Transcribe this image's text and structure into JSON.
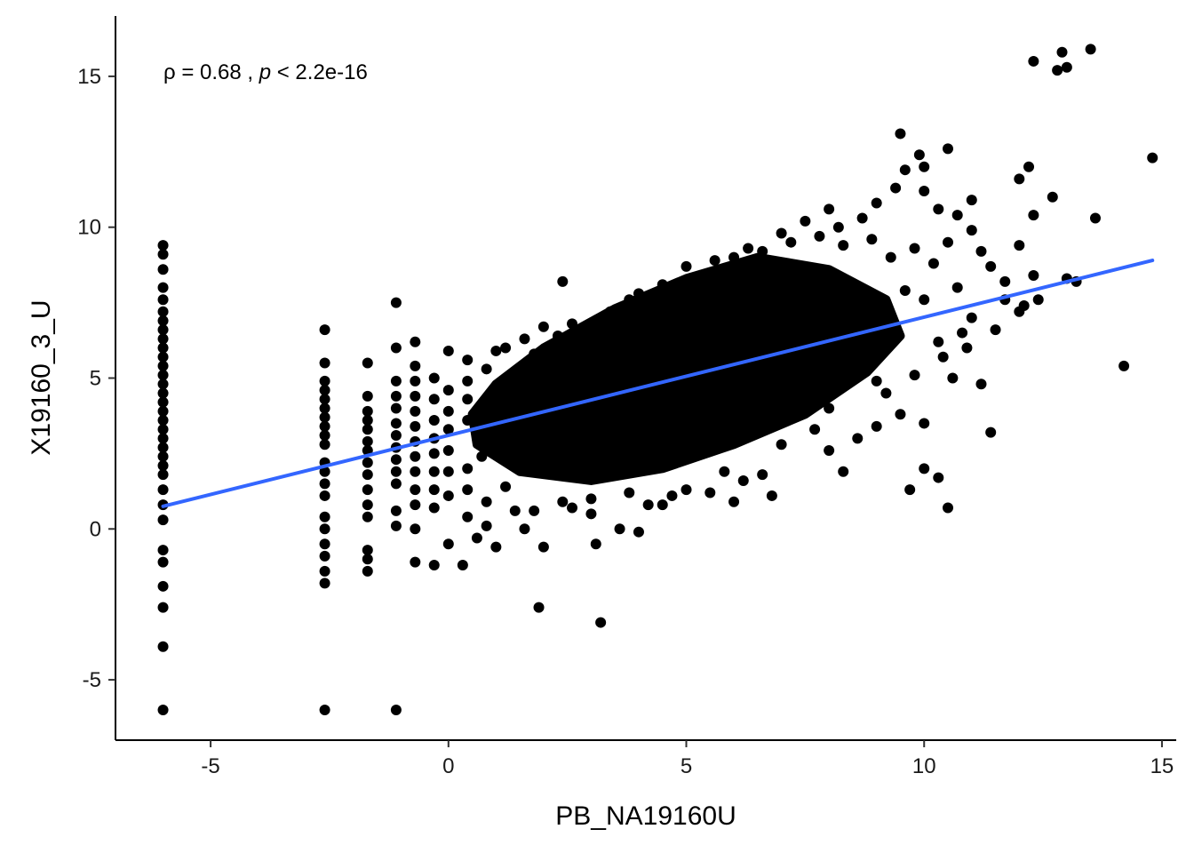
{
  "chart_data": {
    "type": "scatter",
    "title": "",
    "xlabel": "PB_NA19160U",
    "ylabel": "X19160_3_U",
    "xlim": [
      -7.0,
      15.3
    ],
    "ylim": [
      -7.0,
      17.0
    ],
    "x_ticks": [
      -5,
      0,
      5,
      10,
      15
    ],
    "y_ticks": [
      -5,
      0,
      5,
      10,
      15
    ],
    "x_tick_labels": [
      "-5",
      "0",
      "5",
      "10",
      "15"
    ],
    "y_tick_labels": [
      "-5",
      "0",
      "5",
      "10",
      "15"
    ],
    "grid": false,
    "legend": "none",
    "annotation": {
      "prefix": "ρ = 0.68 , ",
      "p_symbol": "p",
      "suffix": " < 2.2e-16"
    },
    "regression_line": {
      "color": "#3366ff",
      "x": [
        -6.0,
        14.8
      ],
      "y": [
        0.75,
        8.9
      ]
    },
    "point_color": "#000000",
    "core_cloud": {
      "center": [
        5.0,
        5.0
      ],
      "note_shape": "dense elliptical cloud of points along the regression trend",
      "polygon": [
        [
          0.6,
          2.8
        ],
        [
          1.5,
          1.9
        ],
        [
          3.0,
          1.6
        ],
        [
          4.5,
          2.0
        ],
        [
          6.0,
          2.8
        ],
        [
          7.5,
          3.8
        ],
        [
          8.8,
          5.2
        ],
        [
          9.5,
          6.4
        ],
        [
          9.2,
          7.6
        ],
        [
          8.0,
          8.6
        ],
        [
          6.5,
          9.0
        ],
        [
          5.0,
          8.3
        ],
        [
          3.5,
          7.3
        ],
        [
          2.0,
          6.0
        ],
        [
          1.0,
          4.8
        ],
        [
          0.5,
          3.8
        ]
      ]
    },
    "points": [
      {
        "x": -6.0,
        "y": 9.4
      },
      {
        "x": -6.0,
        "y": 9.1
      },
      {
        "x": -6.0,
        "y": 8.6
      },
      {
        "x": -6.0,
        "y": 8.0
      },
      {
        "x": -6.0,
        "y": 7.6
      },
      {
        "x": -6.0,
        "y": 7.2
      },
      {
        "x": -6.0,
        "y": 6.9
      },
      {
        "x": -6.0,
        "y": 6.6
      },
      {
        "x": -6.0,
        "y": 6.3
      },
      {
        "x": -6.0,
        "y": 6.0
      },
      {
        "x": -6.0,
        "y": 5.7
      },
      {
        "x": -6.0,
        "y": 5.4
      },
      {
        "x": -6.0,
        "y": 5.1
      },
      {
        "x": -6.0,
        "y": 4.8
      },
      {
        "x": -6.0,
        "y": 4.5
      },
      {
        "x": -6.0,
        "y": 4.2
      },
      {
        "x": -6.0,
        "y": 3.9
      },
      {
        "x": -6.0,
        "y": 3.6
      },
      {
        "x": -6.0,
        "y": 3.3
      },
      {
        "x": -6.0,
        "y": 3.0
      },
      {
        "x": -6.0,
        "y": 2.7
      },
      {
        "x": -6.0,
        "y": 2.4
      },
      {
        "x": -6.0,
        "y": 2.1
      },
      {
        "x": -6.0,
        "y": 1.8
      },
      {
        "x": -6.0,
        "y": 1.3
      },
      {
        "x": -6.0,
        "y": 0.8
      },
      {
        "x": -6.0,
        "y": 0.3
      },
      {
        "x": -6.0,
        "y": -0.7
      },
      {
        "x": -6.0,
        "y": -1.1
      },
      {
        "x": -6.0,
        "y": -1.9
      },
      {
        "x": -6.0,
        "y": -2.6
      },
      {
        "x": -6.0,
        "y": -3.9
      },
      {
        "x": -6.0,
        "y": -6.0
      },
      {
        "x": -2.6,
        "y": 6.6
      },
      {
        "x": -2.6,
        "y": 5.5
      },
      {
        "x": -2.6,
        "y": 4.9
      },
      {
        "x": -2.6,
        "y": 4.6
      },
      {
        "x": -2.6,
        "y": 4.3
      },
      {
        "x": -2.6,
        "y": 4.0
      },
      {
        "x": -2.6,
        "y": 3.7
      },
      {
        "x": -2.6,
        "y": 3.4
      },
      {
        "x": -2.6,
        "y": 3.1
      },
      {
        "x": -2.6,
        "y": 2.8
      },
      {
        "x": -2.6,
        "y": 2.2
      },
      {
        "x": -2.6,
        "y": 1.9
      },
      {
        "x": -2.6,
        "y": 1.5
      },
      {
        "x": -2.6,
        "y": 1.1
      },
      {
        "x": -2.6,
        "y": 0.4
      },
      {
        "x": -2.6,
        "y": 0.0
      },
      {
        "x": -2.6,
        "y": -0.5
      },
      {
        "x": -2.6,
        "y": -0.9
      },
      {
        "x": -2.6,
        "y": -1.4
      },
      {
        "x": -2.6,
        "y": -1.8
      },
      {
        "x": -2.6,
        "y": -6.0
      },
      {
        "x": -1.7,
        "y": 5.5
      },
      {
        "x": -1.7,
        "y": 4.4
      },
      {
        "x": -1.7,
        "y": 3.9
      },
      {
        "x": -1.7,
        "y": 3.6
      },
      {
        "x": -1.7,
        "y": 3.3
      },
      {
        "x": -1.7,
        "y": 2.9
      },
      {
        "x": -1.7,
        "y": 2.6
      },
      {
        "x": -1.7,
        "y": 2.2
      },
      {
        "x": -1.7,
        "y": 1.8
      },
      {
        "x": -1.7,
        "y": 1.3
      },
      {
        "x": -1.7,
        "y": 0.8
      },
      {
        "x": -1.7,
        "y": 0.4
      },
      {
        "x": -1.7,
        "y": -0.7
      },
      {
        "x": -1.7,
        "y": -1.0
      },
      {
        "x": -1.7,
        "y": -1.4
      },
      {
        "x": -1.1,
        "y": 7.5
      },
      {
        "x": -1.1,
        "y": 6.0
      },
      {
        "x": -1.1,
        "y": 4.9
      },
      {
        "x": -1.1,
        "y": 4.4
      },
      {
        "x": -1.1,
        "y": 4.0
      },
      {
        "x": -1.1,
        "y": 3.5
      },
      {
        "x": -1.1,
        "y": 3.1
      },
      {
        "x": -1.1,
        "y": 2.7
      },
      {
        "x": -1.1,
        "y": 2.3
      },
      {
        "x": -1.1,
        "y": 1.9
      },
      {
        "x": -1.1,
        "y": 1.5
      },
      {
        "x": -1.1,
        "y": 0.6
      },
      {
        "x": -1.1,
        "y": 0.1
      },
      {
        "x": -1.1,
        "y": -6.0
      },
      {
        "x": -0.7,
        "y": 6.2
      },
      {
        "x": -0.7,
        "y": 5.4
      },
      {
        "x": -0.7,
        "y": 4.9
      },
      {
        "x": -0.7,
        "y": 4.4
      },
      {
        "x": -0.7,
        "y": 3.9
      },
      {
        "x": -0.7,
        "y": 3.4
      },
      {
        "x": -0.7,
        "y": 2.9
      },
      {
        "x": -0.7,
        "y": 2.4
      },
      {
        "x": -0.7,
        "y": 1.9
      },
      {
        "x": -0.7,
        "y": 1.3
      },
      {
        "x": -0.7,
        "y": 0.8
      },
      {
        "x": -0.7,
        "y": 0.0
      },
      {
        "x": -0.7,
        "y": -1.1
      },
      {
        "x": -0.3,
        "y": 4.3
      },
      {
        "x": -0.3,
        "y": 3.6
      },
      {
        "x": -0.3,
        "y": 3.0
      },
      {
        "x": -0.3,
        "y": 2.5
      },
      {
        "x": -0.3,
        "y": 1.9
      },
      {
        "x": -0.3,
        "y": 1.3
      },
      {
        "x": -0.3,
        "y": 0.7
      },
      {
        "x": -0.3,
        "y": -1.2
      },
      {
        "x": -0.3,
        "y": 5.0
      },
      {
        "x": 0.0,
        "y": 5.9
      },
      {
        "x": 0.0,
        "y": 4.6
      },
      {
        "x": 0.0,
        "y": 3.9
      },
      {
        "x": 0.0,
        "y": 3.3
      },
      {
        "x": 0.0,
        "y": 2.6
      },
      {
        "x": 0.0,
        "y": 1.9
      },
      {
        "x": 0.0,
        "y": 1.1
      },
      {
        "x": 0.0,
        "y": -0.5
      },
      {
        "x": 0.3,
        "y": -1.2
      },
      {
        "x": 0.4,
        "y": 5.6
      },
      {
        "x": 0.4,
        "y": 4.9
      },
      {
        "x": 0.4,
        "y": 4.3
      },
      {
        "x": 0.4,
        "y": 3.6
      },
      {
        "x": 0.4,
        "y": 2.0
      },
      {
        "x": 0.4,
        "y": 1.3
      },
      {
        "x": 0.4,
        "y": 0.4
      },
      {
        "x": 0.6,
        "y": -0.3
      },
      {
        "x": 0.7,
        "y": 2.4
      },
      {
        "x": 0.8,
        "y": 5.3
      },
      {
        "x": 0.8,
        "y": 0.9
      },
      {
        "x": 0.8,
        "y": 0.1
      },
      {
        "x": 1.0,
        "y": -0.6
      },
      {
        "x": 1.0,
        "y": 5.9
      },
      {
        "x": 1.2,
        "y": 1.4
      },
      {
        "x": 1.4,
        "y": 0.6
      },
      {
        "x": 1.4,
        "y": 5.2
      },
      {
        "x": 1.6,
        "y": 0.0
      },
      {
        "x": 1.8,
        "y": 5.8
      },
      {
        "x": 1.8,
        "y": 0.6
      },
      {
        "x": 2.0,
        "y": -0.6
      },
      {
        "x": 1.9,
        "y": -2.6
      },
      {
        "x": 2.3,
        "y": 6.4
      },
      {
        "x": 2.4,
        "y": 0.9
      },
      {
        "x": 2.8,
        "y": 6.3
      },
      {
        "x": 3.0,
        "y": 1.0
      },
      {
        "x": 3.1,
        "y": -0.5
      },
      {
        "x": 3.2,
        "y": -3.1
      },
      {
        "x": 3.4,
        "y": 7.2
      },
      {
        "x": 3.6,
        "y": 0.0
      },
      {
        "x": 4.0,
        "y": -0.1
      },
      {
        "x": 4.2,
        "y": 7.5
      },
      {
        "x": 4.5,
        "y": 0.8
      },
      {
        "x": 2.4,
        "y": 8.2
      },
      {
        "x": 2.0,
        "y": 6.7
      },
      {
        "x": 4.0,
        "y": 7.8
      },
      {
        "x": 5.0,
        "y": 8.7
      },
      {
        "x": 5.4,
        "y": 8.4
      },
      {
        "x": 6.0,
        "y": 9.0
      },
      {
        "x": 6.6,
        "y": 9.2
      },
      {
        "x": 7.2,
        "y": 9.5
      },
      {
        "x": 7.8,
        "y": 9.7
      },
      {
        "x": 8.2,
        "y": 10.0
      },
      {
        "x": 8.7,
        "y": 10.3
      },
      {
        "x": 8.0,
        "y": 10.6
      },
      {
        "x": 9.0,
        "y": 10.8
      },
      {
        "x": 9.4,
        "y": 11.3
      },
      {
        "x": 9.6,
        "y": 11.9
      },
      {
        "x": 9.5,
        "y": 13.1
      },
      {
        "x": 9.9,
        "y": 12.4
      },
      {
        "x": 10.0,
        "y": 12.0
      },
      {
        "x": 10.5,
        "y": 12.6
      },
      {
        "x": 10.0,
        "y": 11.2
      },
      {
        "x": 10.3,
        "y": 10.6
      },
      {
        "x": 10.7,
        "y": 10.4
      },
      {
        "x": 11.0,
        "y": 10.9
      },
      {
        "x": 11.0,
        "y": 9.9
      },
      {
        "x": 10.5,
        "y": 9.5
      },
      {
        "x": 11.2,
        "y": 9.2
      },
      {
        "x": 11.4,
        "y": 8.7
      },
      {
        "x": 11.7,
        "y": 8.2
      },
      {
        "x": 12.0,
        "y": 9.4
      },
      {
        "x": 12.3,
        "y": 10.4
      },
      {
        "x": 12.0,
        "y": 11.6
      },
      {
        "x": 12.2,
        "y": 12.0
      },
      {
        "x": 12.7,
        "y": 11.0
      },
      {
        "x": 12.3,
        "y": 8.4
      },
      {
        "x": 12.1,
        "y": 7.4
      },
      {
        "x": 11.7,
        "y": 7.6
      },
      {
        "x": 12.0,
        "y": 7.2
      },
      {
        "x": 12.4,
        "y": 7.6
      },
      {
        "x": 13.0,
        "y": 8.3
      },
      {
        "x": 13.2,
        "y": 8.2
      },
      {
        "x": 13.6,
        "y": 10.3
      },
      {
        "x": 14.2,
        "y": 5.4
      },
      {
        "x": 14.8,
        "y": 12.3
      },
      {
        "x": 12.3,
        "y": 15.5
      },
      {
        "x": 12.8,
        "y": 15.2
      },
      {
        "x": 13.0,
        "y": 15.3
      },
      {
        "x": 12.9,
        "y": 15.8
      },
      {
        "x": 13.5,
        "y": 15.9
      },
      {
        "x": 11.4,
        "y": 3.2
      },
      {
        "x": 11.2,
        "y": 4.8
      },
      {
        "x": 10.5,
        "y": 0.7
      },
      {
        "x": 10.0,
        "y": 2.0
      },
      {
        "x": 10.3,
        "y": 1.7
      },
      {
        "x": 9.7,
        "y": 1.3
      },
      {
        "x": 10.0,
        "y": 3.5
      },
      {
        "x": 10.6,
        "y": 5.0
      },
      {
        "x": 10.4,
        "y": 5.7
      },
      {
        "x": 10.9,
        "y": 6.0
      },
      {
        "x": 10.3,
        "y": 6.2
      },
      {
        "x": 9.5,
        "y": 3.8
      },
      {
        "x": 9.2,
        "y": 4.5
      },
      {
        "x": 9.0,
        "y": 4.9
      },
      {
        "x": 8.7,
        "y": 5.3
      },
      {
        "x": 8.0,
        "y": 4.0
      },
      {
        "x": 7.7,
        "y": 3.3
      },
      {
        "x": 7.0,
        "y": 2.8
      },
      {
        "x": 6.6,
        "y": 1.8
      },
      {
        "x": 6.2,
        "y": 1.6
      },
      {
        "x": 5.8,
        "y": 1.9
      },
      {
        "x": 6.8,
        "y": 1.1
      },
      {
        "x": 6.0,
        "y": 0.9
      },
      {
        "x": 5.5,
        "y": 1.2
      },
      {
        "x": 8.0,
        "y": 2.6
      },
      {
        "x": 8.3,
        "y": 1.9
      },
      {
        "x": 8.6,
        "y": 3.0
      },
      {
        "x": 9.0,
        "y": 3.4
      },
      {
        "x": 5.0,
        "y": 1.3
      },
      {
        "x": 4.7,
        "y": 1.1
      },
      {
        "x": 4.2,
        "y": 0.8
      },
      {
        "x": 3.8,
        "y": 1.2
      },
      {
        "x": 3.0,
        "y": 0.5
      },
      {
        "x": 2.6,
        "y": 0.7
      },
      {
        "x": 1.2,
        "y": 6.0
      },
      {
        "x": 1.6,
        "y": 6.3
      },
      {
        "x": 2.6,
        "y": 6.8
      },
      {
        "x": 3.0,
        "y": 6.6
      },
      {
        "x": 3.8,
        "y": 7.6
      },
      {
        "x": 4.5,
        "y": 8.1
      },
      {
        "x": 4.8,
        "y": 7.8
      },
      {
        "x": 5.6,
        "y": 8.9
      },
      {
        "x": 6.3,
        "y": 9.3
      },
      {
        "x": 7.0,
        "y": 9.8
      },
      {
        "x": 7.5,
        "y": 10.2
      },
      {
        "x": 8.3,
        "y": 9.4
      },
      {
        "x": 8.9,
        "y": 9.6
      },
      {
        "x": 9.3,
        "y": 9.0
      },
      {
        "x": 9.8,
        "y": 9.3
      },
      {
        "x": 10.2,
        "y": 8.8
      },
      {
        "x": 10.7,
        "y": 8.0
      },
      {
        "x": 10.0,
        "y": 7.6
      },
      {
        "x": 9.6,
        "y": 7.9
      },
      {
        "x": 11.0,
        "y": 7.0
      },
      {
        "x": 10.8,
        "y": 6.5
      },
      {
        "x": 11.5,
        "y": 6.6
      },
      {
        "x": 9.8,
        "y": 5.1
      },
      {
        "x": 9.2,
        "y": 6.0
      }
    ]
  }
}
